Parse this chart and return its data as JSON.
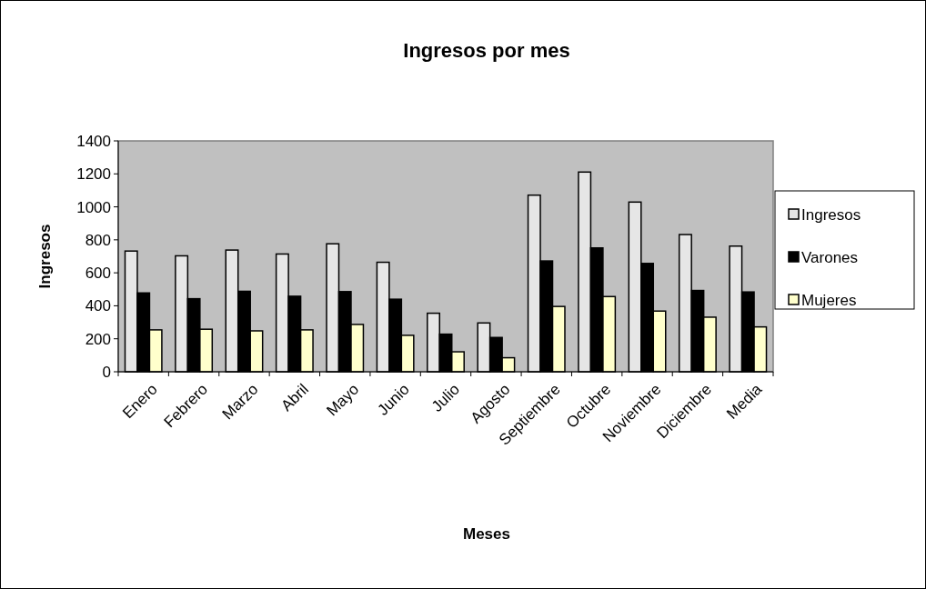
{
  "chart_data": {
    "type": "bar",
    "title": "Ingresos por mes",
    "xlabel": "Meses",
    "ylabel": "Ingresos",
    "categories": [
      "Enero",
      "Febrero",
      "Marzo",
      "Abril",
      "Mayo",
      "Junio",
      "Julio",
      "Agosto",
      "Septiembre",
      "Octubre",
      "Noviembre",
      "Diciembre",
      "Media"
    ],
    "series": [
      {
        "name": "Ingresos",
        "color": "#e6e6e6",
        "values": [
          732,
          703,
          738,
          714,
          776,
          664,
          355,
          296,
          1071,
          1211,
          1029,
          832,
          762
        ]
      },
      {
        "name": "Varones",
        "color": "#000000",
        "values": [
          478,
          443,
          488,
          458,
          486,
          440,
          228,
          208,
          672,
          751,
          657,
          493,
          484
        ]
      },
      {
        "name": "Mujeres",
        "color": "#ffffcc",
        "values": [
          254,
          258,
          248,
          254,
          287,
          221,
          121,
          85,
          396,
          456,
          368,
          331,
          272
        ]
      }
    ],
    "ylim": [
      0,
      1400
    ],
    "yticks": [
      0,
      200,
      400,
      600,
      800,
      1000,
      1200,
      1400
    ],
    "grid": false,
    "legend": "right"
  }
}
